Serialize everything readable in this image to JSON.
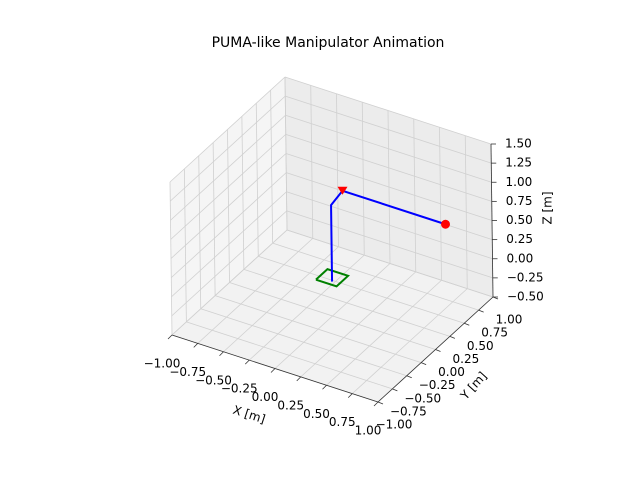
{
  "chart_data": {
    "type": "line3d",
    "title": "PUMA-like Manipulator Animation",
    "xlabel": "X [m]",
    "ylabel": "Y [m]",
    "zlabel": "Z [m]",
    "xlim": [
      -1,
      1
    ],
    "ylim": [
      -1,
      1
    ],
    "zlim": [
      -0.5,
      1.5
    ],
    "xticks": [
      {
        "value": -1,
        "label": "−1.00"
      },
      {
        "value": -0.75,
        "label": "−0.75"
      },
      {
        "value": -0.5,
        "label": "−0.50"
      },
      {
        "value": -0.25,
        "label": "−0.25"
      },
      {
        "value": 0,
        "label": "0.00"
      },
      {
        "value": 0.25,
        "label": "0.25"
      },
      {
        "value": 0.5,
        "label": "0.50"
      },
      {
        "value": 0.75,
        "label": "0.75"
      },
      {
        "value": 1,
        "label": "1.00"
      }
    ],
    "yticks": [
      {
        "value": -1,
        "label": "−1.00"
      },
      {
        "value": -0.75,
        "label": "−0.75"
      },
      {
        "value": -0.5,
        "label": "−0.50"
      },
      {
        "value": -0.25,
        "label": "−0.25"
      },
      {
        "value": 0,
        "label": "0.00"
      },
      {
        "value": 0.25,
        "label": "0.25"
      },
      {
        "value": 0.5,
        "label": "0.50"
      },
      {
        "value": 0.75,
        "label": "0.75"
      },
      {
        "value": 1,
        "label": "1.00"
      }
    ],
    "zticks": [
      {
        "value": -0.5,
        "label": "−0.50"
      },
      {
        "value": -0.25,
        "label": "−0.25"
      },
      {
        "value": 0,
        "label": "0.00"
      },
      {
        "value": 0.25,
        "label": "0.25"
      },
      {
        "value": 0.5,
        "label": "0.50"
      },
      {
        "value": 0.75,
        "label": "0.75"
      },
      {
        "value": 1,
        "label": "1.00"
      },
      {
        "value": 1.25,
        "label": "1.25"
      },
      {
        "value": 1.5,
        "label": "1.50"
      }
    ],
    "grid": true,
    "series": [
      {
        "color": "#008000",
        "marker": "none",
        "x": [
          -0.1,
          0.1,
          0.1,
          -0.1,
          -0.1
        ],
        "y": [
          -0.1,
          -0.1,
          0.1,
          0.1,
          -0.1
        ],
        "z": [
          0,
          0,
          0,
          0,
          0
        ]
      },
      {
        "color": "#0000ff",
        "marker": "none",
        "x": [
          0,
          0,
          0,
          1
        ],
        "y": [
          0,
          0,
          0.2,
          0.2
        ],
        "z": [
          -0.05,
          0.95,
          1.0,
          1.0
        ]
      },
      {
        "color": "#ff0000",
        "marker": "v",
        "x": [
          0
        ],
        "y": [
          0.2
        ],
        "z": [
          1.0
        ]
      },
      {
        "color": "#ff0000",
        "marker": "o",
        "x": [
          1
        ],
        "y": [
          0.2
        ],
        "z": [
          1.0
        ]
      }
    ]
  }
}
